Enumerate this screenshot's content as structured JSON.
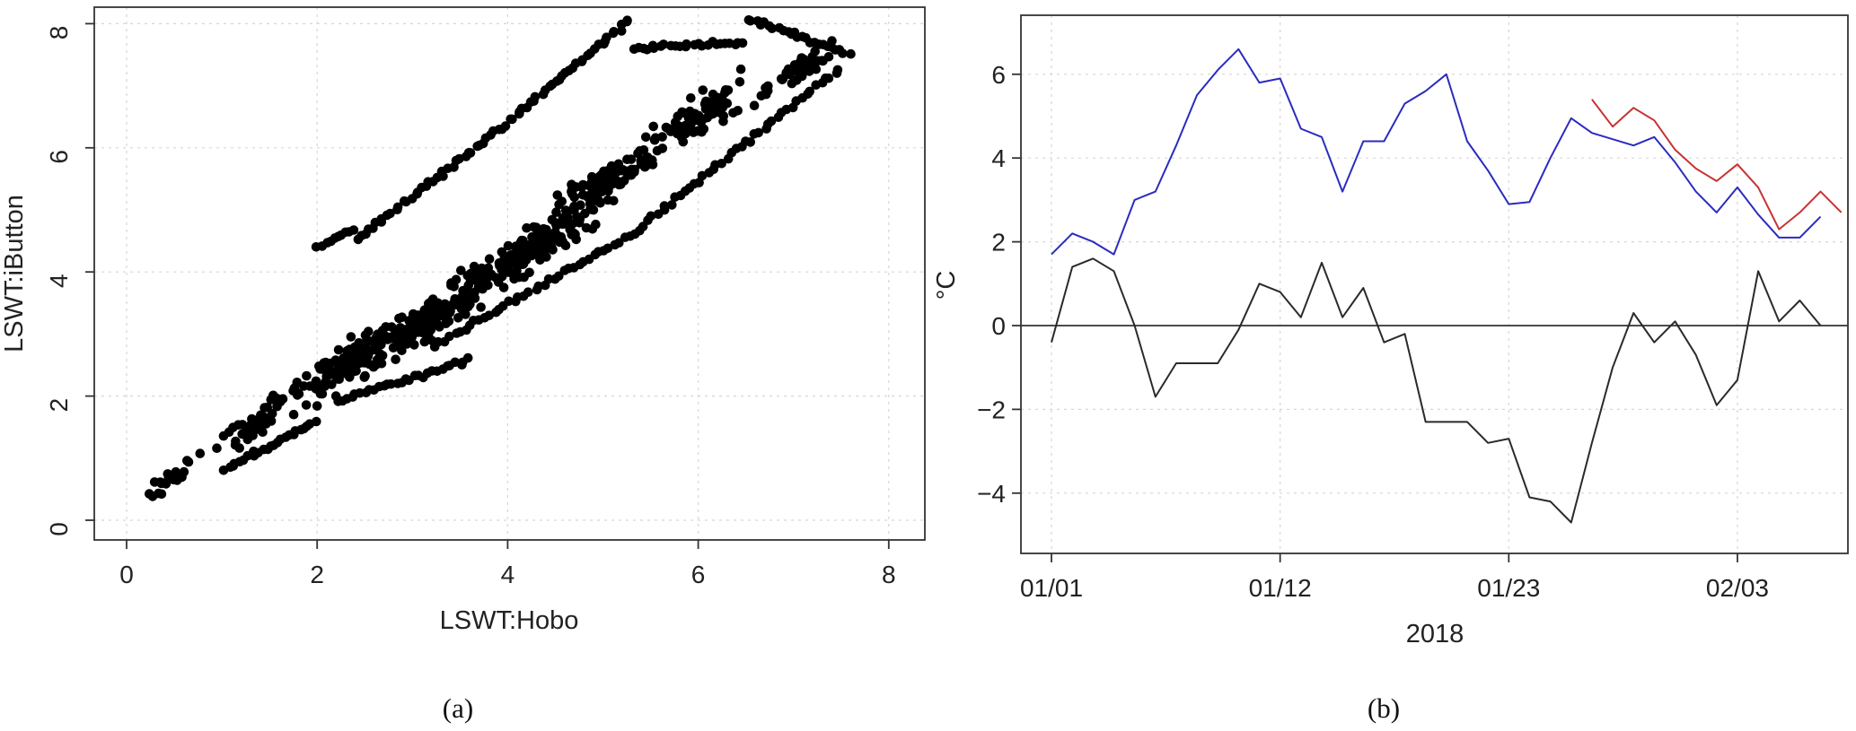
{
  "chart_data": [
    {
      "type": "scatter",
      "panel_label": "(a)",
      "xlabel": "LSWT:Hobo",
      "ylabel": "LSWT:iButton",
      "xlim": [
        0,
        8
      ],
      "ylim": [
        0,
        8
      ],
      "xticks": [
        "0",
        "2",
        "4",
        "6",
        "8"
      ],
      "yticks": [
        "0",
        "2",
        "4",
        "6",
        "8"
      ],
      "grid": true,
      "point_color": "#000000",
      "point_clusters": [
        {
          "center": [
            0.4,
            0.6
          ],
          "spread": 0.25,
          "count": 20
        },
        {
          "center": [
            1.3,
            1.5
          ],
          "spread": 0.35,
          "count": 40
        },
        {
          "center": [
            2.3,
            2.5
          ],
          "spread": 0.5,
          "count": 120
        },
        {
          "center": [
            3.2,
            3.3
          ],
          "spread": 0.55,
          "count": 140
        },
        {
          "center": [
            4.2,
            4.3
          ],
          "spread": 0.55,
          "count": 140
        },
        {
          "center": [
            5.0,
            5.4
          ],
          "spread": 0.5,
          "count": 100
        },
        {
          "center": [
            6.0,
            6.5
          ],
          "spread": 0.55,
          "count": 90
        },
        {
          "center": [
            7.0,
            7.2
          ],
          "spread": 0.35,
          "count": 50
        }
      ],
      "point_bands": [
        {
          "from": [
            2.0,
            4.4
          ],
          "to": [
            2.4,
            4.7
          ],
          "count": 10
        },
        {
          "from": [
            2.4,
            4.5
          ],
          "to": [
            4.0,
            6.4
          ],
          "count": 40
        },
        {
          "from": [
            4.0,
            6.4
          ],
          "to": [
            5.3,
            8.1
          ],
          "count": 35
        },
        {
          "from": [
            3.2,
            2.8
          ],
          "to": [
            5.3,
            4.6
          ],
          "count": 40
        },
        {
          "from": [
            5.3,
            4.6
          ],
          "to": [
            7.5,
            7.3
          ],
          "count": 45
        },
        {
          "from": [
            5.3,
            7.6
          ],
          "to": [
            6.5,
            7.7
          ],
          "count": 25
        },
        {
          "from": [
            6.5,
            8.1
          ],
          "to": [
            7.6,
            7.5
          ],
          "count": 25
        },
        {
          "from": [
            1.0,
            0.8
          ],
          "to": [
            2.0,
            1.6
          ],
          "count": 25
        },
        {
          "from": [
            2.2,
            1.9
          ],
          "to": [
            3.6,
            2.6
          ],
          "count": 30
        }
      ]
    },
    {
      "type": "line",
      "panel_label": "(b)",
      "xlabel": "2018",
      "ylabel": "°C",
      "ylim": [
        -5.5,
        7.5
      ],
      "yticks": [
        "−4",
        "−2",
        "0",
        "2",
        "4",
        "6"
      ],
      "yticks_values": [
        -4,
        -2,
        0,
        2,
        4,
        6
      ],
      "xticks": [
        "01/01",
        "01/12",
        "01/23",
        "02/03"
      ],
      "xticks_day_index": [
        0,
        11,
        22,
        33
      ],
      "xlim_day_index": [
        -0.6,
        38.5
      ],
      "reference_line_y": 0,
      "grid": true,
      "series": [
        {
          "color": "#2b2bc0",
          "days": [
            0,
            1,
            2,
            3,
            4,
            5,
            6,
            7,
            8,
            9,
            10,
            11,
            12,
            13,
            14,
            15,
            16,
            17,
            18,
            19,
            20,
            21,
            22,
            23,
            24,
            25,
            26,
            27,
            28,
            29,
            30,
            31,
            32,
            33,
            34,
            35,
            36,
            37
          ],
          "values": [
            1.7,
            2.2,
            2.0,
            1.7,
            3.0,
            3.2,
            4.3,
            5.5,
            6.1,
            6.6,
            5.8,
            5.9,
            4.7,
            4.5,
            3.2,
            4.4,
            4.4,
            5.3,
            5.6,
            6.0,
            4.4,
            3.7,
            2.9,
            2.95,
            4.0,
            4.95,
            4.6,
            4.45,
            4.3,
            4.5,
            3.9,
            3.2,
            2.7,
            3.3,
            2.65,
            2.1,
            2.1,
            2.6
          ]
        },
        {
          "color": "#c83232",
          "days": [
            26,
            27,
            28,
            29,
            30,
            31,
            32,
            33,
            34,
            35,
            36,
            37,
            38
          ],
          "values": [
            5.4,
            4.75,
            5.2,
            4.9,
            4.2,
            3.75,
            3.45,
            3.85,
            3.3,
            2.3,
            2.7,
            3.2,
            2.7
          ]
        },
        {
          "color": "#2a2a2a",
          "days": [
            0,
            1,
            2,
            3,
            4,
            5,
            6,
            7,
            8,
            9,
            10,
            11,
            12,
            13,
            14,
            15,
            16,
            17,
            18,
            19,
            20,
            21,
            22,
            23,
            24,
            25,
            26,
            27,
            28,
            29,
            30,
            31,
            32,
            33,
            34,
            35,
            36,
            37
          ],
          "values": [
            -0.4,
            1.4,
            1.6,
            1.3,
            0.0,
            -1.7,
            -0.9,
            -0.9,
            -0.9,
            -0.1,
            1.0,
            0.8,
            0.2,
            1.5,
            0.2,
            0.9,
            -0.4,
            -0.2,
            -2.3,
            -2.3,
            -2.3,
            -2.8,
            -2.7,
            -4.1,
            -4.2,
            -4.7,
            -2.8,
            -1.0,
            0.3,
            -0.4,
            0.1,
            -0.7,
            -1.9,
            -1.3,
            1.3,
            0.1,
            0.6,
            0.0
          ]
        }
      ]
    }
  ]
}
